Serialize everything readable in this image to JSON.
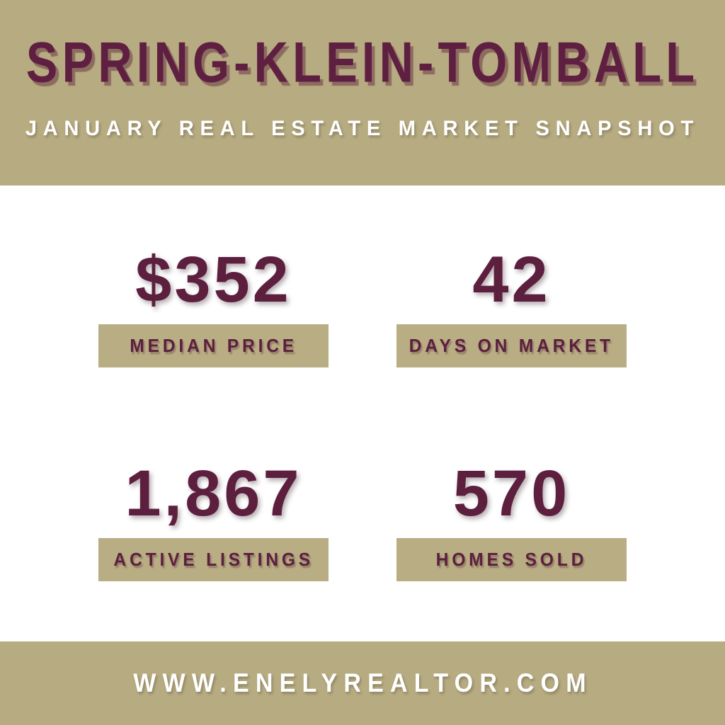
{
  "theme": {
    "banner_color": "#b7ab81",
    "label_box_color": "#b9ad84",
    "accent_text_color": "#5d1f3e",
    "light_text_color": "#ffffff",
    "background_color": "#ffffff"
  },
  "header": {
    "title": "SPRING-KLEIN-TOMBALL",
    "subtitle": "JANUARY REAL ESTATE MARKET SNAPSHOT"
  },
  "stats": [
    {
      "value": "$352",
      "label": "MEDIAN PRICE"
    },
    {
      "value": "42",
      "label": "DAYS ON MARKET"
    },
    {
      "value": "1,867",
      "label": "ACTIVE LISTINGS"
    },
    {
      "value": "570",
      "label": "HOMES SOLD"
    }
  ],
  "footer": {
    "website": "WWW.ENELYREALTOR.COM"
  }
}
